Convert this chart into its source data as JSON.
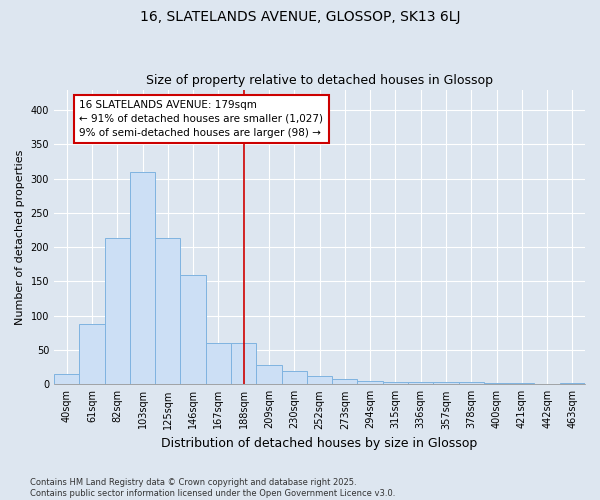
{
  "title": "16, SLATELANDS AVENUE, GLOSSOP, SK13 6LJ",
  "subtitle": "Size of property relative to detached houses in Glossop",
  "xlabel": "Distribution of detached houses by size in Glossop",
  "ylabel": "Number of detached properties",
  "categories": [
    "40sqm",
    "61sqm",
    "82sqm",
    "103sqm",
    "125sqm",
    "146sqm",
    "167sqm",
    "188sqm",
    "209sqm",
    "230sqm",
    "252sqm",
    "273sqm",
    "294sqm",
    "315sqm",
    "336sqm",
    "357sqm",
    "378sqm",
    "400sqm",
    "421sqm",
    "442sqm",
    "463sqm"
  ],
  "values": [
    15,
    88,
    213,
    310,
    213,
    160,
    60,
    60,
    28,
    20,
    12,
    8,
    5,
    4,
    4,
    3,
    3,
    2,
    2,
    1,
    2
  ],
  "bar_color": "#ccdff5",
  "bar_edge_color": "#7fb3e0",
  "vline_x_idx": 7.0,
  "marker_label": "16 SLATELANDS AVENUE: 179sqm",
  "annotation_line1": "← 91% of detached houses are smaller (1,027)",
  "annotation_line2": "9% of semi-detached houses are larger (98) →",
  "annotation_box_color": "#ffffff",
  "annotation_box_edge": "#cc0000",
  "vline_color": "#cc0000",
  "background_color": "#dde6f0",
  "plot_background": "#dde6f0",
  "grid_color": "#ffffff",
  "ylim": [
    0,
    430
  ],
  "yticks": [
    0,
    50,
    100,
    150,
    200,
    250,
    300,
    350,
    400
  ],
  "title_fontsize": 10,
  "subtitle_fontsize": 9,
  "axis_fontsize": 8,
  "tick_fontsize": 7,
  "footer": "Contains HM Land Registry data © Crown copyright and database right 2025.\nContains public sector information licensed under the Open Government Licence v3.0."
}
